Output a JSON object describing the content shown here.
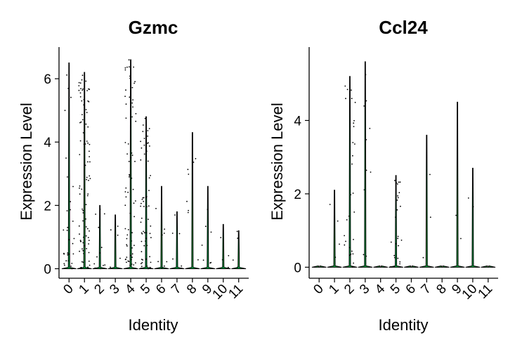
{
  "chart_data": [
    {
      "type": "violin",
      "title": "Gzmc",
      "xlabel": "Identity",
      "ylabel": "Expression Level",
      "categories": [
        "0",
        "1",
        "2",
        "3",
        "4",
        "5",
        "6",
        "7",
        "8",
        "9",
        "10",
        "11"
      ],
      "ylim": [
        -0.3,
        7.0
      ],
      "yticks": [
        0,
        2,
        4,
        6
      ],
      "max_values": [
        6.5,
        6.2,
        2.0,
        1.7,
        6.6,
        4.8,
        2.6,
        1.8,
        4.3,
        2.6,
        1.4,
        1.2
      ],
      "points_per_group": [
        30,
        90,
        12,
        5,
        70,
        60,
        8,
        6,
        8,
        7,
        4,
        4
      ],
      "fill_color": "#00ad45"
    },
    {
      "type": "violin",
      "title": "Ccl24",
      "xlabel": "Identity",
      "ylabel": "Expression Level",
      "categories": [
        "0",
        "1",
        "2",
        "3",
        "4",
        "5",
        "6",
        "7",
        "8",
        "9",
        "10",
        "11"
      ],
      "ylim": [
        -0.3,
        6.0
      ],
      "yticks": [
        0,
        2,
        4
      ],
      "max_values": [
        0.0,
        2.1,
        5.2,
        5.6,
        0.0,
        2.5,
        0.0,
        3.6,
        0.0,
        4.5,
        2.7,
        0.0
      ],
      "points_per_group": [
        0,
        5,
        30,
        10,
        0,
        25,
        0,
        3,
        0,
        2,
        2,
        0
      ],
      "fill_color": "#00ad45"
    }
  ]
}
